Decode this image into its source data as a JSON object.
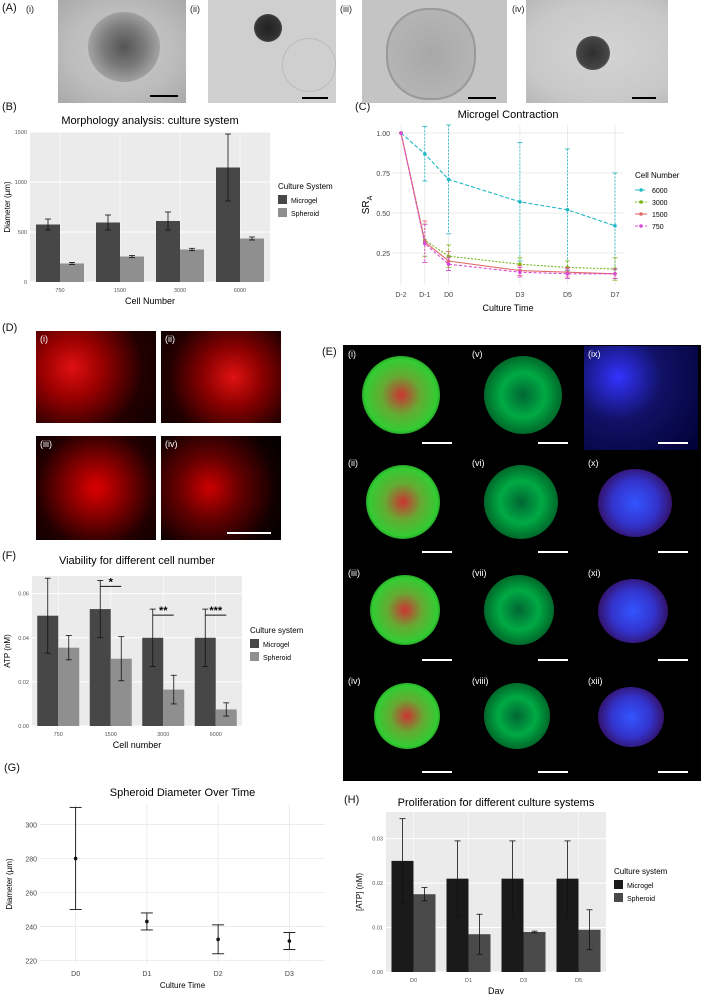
{
  "panel_labels": {
    "A": "(A)",
    "B": "(B)",
    "C": "(C)",
    "D": "(D)",
    "E": "(E)",
    "F": "(F)",
    "G": "(G)",
    "H": "(H)"
  },
  "A_sub": [
    "(i)",
    "(ii)",
    "(iii)",
    "(iv)"
  ],
  "D_sub": [
    "(i)",
    "(ii)",
    "(iii)",
    "(iv)"
  ],
  "E_sub": [
    "(i)",
    "(v)",
    "(ix)",
    "(ii)",
    "(vi)",
    "(x)",
    "(iii)",
    "(vii)",
    "(xi)",
    "(iv)",
    "(viii)",
    "(xii)"
  ],
  "colors": {
    "microgel": "#474747",
    "spheroid": "#8f8f8f",
    "plot_bg": "#ebebeb",
    "c6000": "#1fb8c4",
    "c3000": "#7bb51a",
    "c1500": "#e06a6a",
    "c750": "#d94bd6"
  },
  "chart_data": [
    {
      "id": "B",
      "type": "bar",
      "title": "Morphology analysis: culture system",
      "xlabel": "Cell Number",
      "ylabel": "Diameter (µm)",
      "categories": [
        "750",
        "1500",
        "3000",
        "6000"
      ],
      "ylim": [
        0,
        1500
      ],
      "yticks": [
        0,
        500,
        1000,
        1500
      ],
      "legend_title": "Culture System",
      "series": [
        {
          "name": "Microgel",
          "values": [
            575,
            595,
            610,
            1145
          ],
          "err": [
            55,
            75,
            90,
            335
          ]
        },
        {
          "name": "Spheroid",
          "values": [
            185,
            255,
            325,
            435
          ],
          "err": [
            10,
            10,
            12,
            15
          ]
        }
      ]
    },
    {
      "id": "C",
      "type": "line",
      "title": "Microgel Contraction",
      "xlabel": "Culture Time",
      "ylabel": "SR",
      "ylabel_sub": "A",
      "x": [
        "D-2",
        "D-1",
        "D0",
        "D3",
        "D5",
        "D7"
      ],
      "x_pos": [
        -2,
        -1,
        0,
        3,
        5,
        7
      ],
      "ylim": [
        0.05,
        1.05
      ],
      "yticks": [
        0.25,
        0.5,
        0.75,
        1.0
      ],
      "ytick_labels": [
        "0.25",
        "0.50",
        "0.75",
        "1.00"
      ],
      "legend_title": "Cell Number",
      "series": [
        {
          "name": "6000",
          "values": [
            1.0,
            0.87,
            0.71,
            0.57,
            0.52,
            0.42
          ],
          "err": [
            0,
            0.17,
            0.34,
            0.37,
            0.38,
            0.33
          ]
        },
        {
          "name": "3000",
          "values": [
            1.0,
            0.33,
            0.23,
            0.18,
            0.16,
            0.15
          ],
          "err": [
            0,
            0.1,
            0.07,
            0.04,
            0.04,
            0.07
          ]
        },
        {
          "name": "1500",
          "values": [
            1.0,
            0.32,
            0.2,
            0.14,
            0.13,
            0.12
          ],
          "err": [
            0,
            0.13,
            0.06,
            0.03,
            0.03,
            0.03
          ]
        },
        {
          "name": "750",
          "values": [
            1.0,
            0.31,
            0.18,
            0.13,
            0.12,
            0.12
          ],
          "err": [
            0,
            0.12,
            0.04,
            0.03,
            0.03,
            0.03
          ]
        }
      ]
    },
    {
      "id": "F",
      "type": "bar",
      "title": "Viability for different cell number",
      "xlabel": "Cell number",
      "ylabel": "ATP (nM)",
      "categories": [
        "750",
        "1500",
        "3000",
        "6000"
      ],
      "ylim": [
        0,
        0.068
      ],
      "yticks": [
        0,
        0.02,
        0.04,
        0.06
      ],
      "ytick_labels": [
        "0.00",
        "0.02",
        "0.04",
        "0.06"
      ],
      "legend_title": "Culture system",
      "significance": [
        "",
        "*",
        "**",
        "***"
      ],
      "series": [
        {
          "name": "Microgel",
          "values": [
            0.05,
            0.053,
            0.04,
            0.04
          ],
          "err": [
            0.017,
            0.013,
            0.013,
            0.013
          ]
        },
        {
          "name": "Spheroid",
          "values": [
            0.0355,
            0.0305,
            0.0165,
            0.0075
          ],
          "err": [
            0.0055,
            0.01,
            0.0065,
            0.003
          ]
        }
      ]
    },
    {
      "id": "G",
      "type": "scatter",
      "title": "Spheroid Diameter Over Time",
      "xlabel": "Culture Time",
      "ylabel": "Diameter (µm)",
      "x": [
        "D0",
        "D1",
        "D2",
        "D3"
      ],
      "ylim": [
        218,
        312
      ],
      "yticks": [
        220,
        240,
        260,
        280,
        300
      ],
      "series": [
        {
          "values": [
            280,
            243,
            232.5,
            231.5
          ],
          "err": [
            30,
            5,
            8.5,
            5
          ]
        }
      ]
    },
    {
      "id": "H",
      "type": "bar",
      "title": "Proliferation for different culture systems",
      "xlabel": "Day",
      "ylabel": "[ATP] (nM)",
      "categories": [
        "D0",
        "D1",
        "D3",
        "D5"
      ],
      "ylim": [
        0,
        0.036
      ],
      "yticks": [
        0,
        0.01,
        0.02,
        0.03
      ],
      "ytick_labels": [
        "0.00",
        "0.01",
        "0.02",
        "0.03"
      ],
      "legend_title": "Culture system",
      "series": [
        {
          "name": "Microgel",
          "values": [
            0.025,
            0.021,
            0.021,
            0.021
          ],
          "err": [
            0.0095,
            0.0085,
            0.0085,
            0.0085
          ]
        },
        {
          "name": "Spheroid",
          "values": [
            0.0175,
            0.0085,
            0.009,
            0.0095
          ],
          "err": [
            0.0015,
            0.0045,
            0.0002,
            0.0045
          ]
        }
      ]
    }
  ]
}
